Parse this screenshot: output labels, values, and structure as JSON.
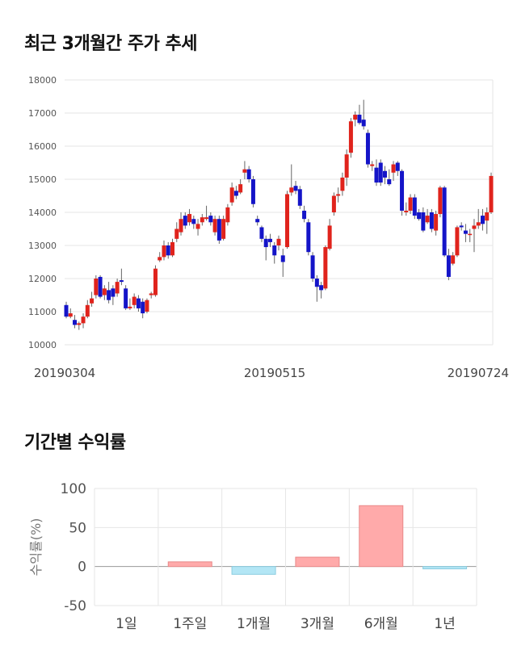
{
  "sections": {
    "price_title": "최근 3개월간 주가 추세",
    "return_title": "기간별 수익률"
  },
  "colors": {
    "up": "#e0231c",
    "down": "#1414c8",
    "bar_positive": "#ffaaaa",
    "bar_negative": "#b3e6f5",
    "grid": "#e6e6e6"
  },
  "chart_data": [
    {
      "type": "candlestick",
      "title": "",
      "xlabel": "",
      "ylabel": "",
      "ylim": [
        10000,
        18000
      ],
      "yticks": [
        10000,
        11000,
        12000,
        13000,
        14000,
        15000,
        16000,
        17000,
        18000
      ],
      "xtick_labels": [
        "20190304",
        "20190515",
        "20190724"
      ],
      "grid": true,
      "legend": "none",
      "candles": [
        [
          11200,
          10850,
          11300,
          10800
        ],
        [
          10850,
          10950,
          11100,
          10800
        ],
        [
          10750,
          10600,
          10900,
          10500
        ],
        [
          10600,
          10650,
          10700,
          10450
        ],
        [
          10650,
          10850,
          10950,
          10500
        ],
        [
          10850,
          11200,
          11350,
          10800
        ],
        [
          11250,
          11400,
          11600,
          11150
        ],
        [
          11500,
          12000,
          12100,
          11400
        ],
        [
          12050,
          11450,
          12100,
          11400
        ],
        [
          11500,
          11700,
          11800,
          11350
        ],
        [
          11650,
          11350,
          11900,
          11250
        ],
        [
          11700,
          11450,
          11800,
          11200
        ],
        [
          11550,
          11900,
          12000,
          11450
        ],
        [
          11950,
          11900,
          12300,
          11800
        ],
        [
          11700,
          11100,
          11800,
          11050
        ],
        [
          11100,
          11150,
          11400,
          11050
        ],
        [
          11200,
          11450,
          11550,
          11100
        ],
        [
          11400,
          11100,
          11500,
          11000
        ],
        [
          11300,
          10950,
          11400,
          10800
        ],
        [
          11000,
          11350,
          11400,
          10950
        ],
        [
          11500,
          11550,
          11600,
          11400
        ],
        [
          11500,
          12300,
          12400,
          11450
        ],
        [
          12550,
          12650,
          12800,
          12500
        ],
        [
          12650,
          13000,
          13150,
          12550
        ],
        [
          13000,
          12700,
          13100,
          12600
        ],
        [
          12700,
          13100,
          13200,
          12650
        ],
        [
          13200,
          13500,
          13700,
          13100
        ],
        [
          13400,
          13800,
          14000,
          13300
        ],
        [
          13900,
          13600,
          14000,
          13500
        ],
        [
          13700,
          13950,
          14100,
          13600
        ],
        [
          13800,
          13650,
          13900,
          13500
        ],
        [
          13500,
          13650,
          13800,
          13300
        ],
        [
          13700,
          13850,
          13950,
          13600
        ],
        [
          13800,
          13850,
          14200,
          13750
        ],
        [
          13900,
          13700,
          14000,
          13600
        ],
        [
          13400,
          13800,
          13900,
          13300
        ],
        [
          13800,
          13150,
          13900,
          13050
        ],
        [
          13200,
          13800,
          13900,
          13150
        ],
        [
          13700,
          14150,
          14250,
          13600
        ],
        [
          14300,
          14750,
          14900,
          14200
        ],
        [
          14650,
          14500,
          14800,
          14400
        ],
        [
          14600,
          14850,
          15000,
          14550
        ],
        [
          15200,
          15300,
          15550,
          15000
        ],
        [
          15300,
          15000,
          15400,
          14900
        ],
        [
          15000,
          14250,
          15100,
          14150
        ],
        [
          13800,
          13700,
          13900,
          13600
        ],
        [
          13550,
          13200,
          13600,
          13100
        ],
        [
          13200,
          12950,
          13300,
          12550
        ],
        [
          13200,
          13100,
          13350,
          12950
        ],
        [
          13000,
          12700,
          13100,
          12450
        ],
        [
          13000,
          13200,
          13300,
          12850
        ],
        [
          12700,
          12500,
          12900,
          12050
        ],
        [
          12950,
          14550,
          14650,
          12900
        ],
        [
          14600,
          14750,
          15450,
          14500
        ],
        [
          14800,
          14650,
          14950,
          14550
        ],
        [
          14700,
          14200,
          14800,
          14100
        ],
        [
          14050,
          13800,
          14200,
          13700
        ],
        [
          13700,
          12800,
          13800,
          12700
        ],
        [
          12700,
          12000,
          12800,
          11900
        ],
        [
          12000,
          11750,
          12100,
          11300
        ],
        [
          11800,
          11650,
          11900,
          11400
        ],
        [
          11700,
          12950,
          13000,
          11650
        ],
        [
          12900,
          13600,
          13800,
          12850
        ],
        [
          14000,
          14500,
          14600,
          13900
        ],
        [
          14500,
          14550,
          14750,
          14300
        ],
        [
          14650,
          15050,
          15200,
          14500
        ],
        [
          15050,
          15750,
          15900,
          14800
        ],
        [
          15800,
          16750,
          16850,
          15650
        ],
        [
          16800,
          16950,
          17050,
          16600
        ],
        [
          16950,
          16700,
          17250,
          16650
        ],
        [
          16800,
          16600,
          17400,
          16500
        ],
        [
          16400,
          15450,
          16500,
          15350
        ],
        [
          15400,
          15450,
          15550,
          15250
        ],
        [
          15350,
          14900,
          15600,
          14800
        ],
        [
          15500,
          14900,
          15600,
          14800
        ],
        [
          15250,
          15050,
          15400,
          14850
        ],
        [
          15000,
          14850,
          15300,
          14800
        ],
        [
          15200,
          15450,
          15550,
          14950
        ],
        [
          15500,
          15250,
          15550,
          15100
        ],
        [
          15250,
          14050,
          15300,
          13900
        ],
        [
          14000,
          14050,
          14300,
          13900
        ],
        [
          14050,
          14450,
          14550,
          13950
        ],
        [
          14450,
          13900,
          14550,
          13800
        ],
        [
          14000,
          13800,
          14100,
          13750
        ],
        [
          14000,
          13450,
          14150,
          13400
        ],
        [
          13700,
          13900,
          14100,
          13650
        ],
        [
          14000,
          13500,
          14100,
          13400
        ],
        [
          13450,
          13950,
          14050,
          13300
        ],
        [
          13950,
          14750,
          14800,
          13850
        ],
        [
          14750,
          12700,
          14800,
          12650
        ],
        [
          12700,
          12050,
          12900,
          11950
        ],
        [
          12450,
          12700,
          12800,
          12400
        ],
        [
          12700,
          13550,
          13600,
          12650
        ],
        [
          13600,
          13550,
          13700,
          13450
        ],
        [
          13450,
          13350,
          13650,
          13100
        ],
        [
          13350,
          13350,
          13500,
          13100
        ],
        [
          13500,
          13600,
          13800,
          12800
        ],
        [
          13600,
          13700,
          14100,
          13500
        ],
        [
          13900,
          13650,
          14100,
          13450
        ],
        [
          13750,
          14000,
          14150,
          13350
        ],
        [
          14000,
          15100,
          15200,
          13950
        ]
      ]
    },
    {
      "type": "bar",
      "title": "",
      "xlabel": "",
      "ylabel": "수익률(%)",
      "ylim": [
        -50,
        100
      ],
      "yticks": [
        -50,
        0,
        50,
        100
      ],
      "grid": true,
      "legend": "none",
      "categories": [
        "1일",
        "1주일",
        "1개월",
        "3개월",
        "6개월",
        "1년"
      ],
      "values": [
        0,
        6,
        -10,
        12,
        78,
        -3
      ]
    }
  ]
}
